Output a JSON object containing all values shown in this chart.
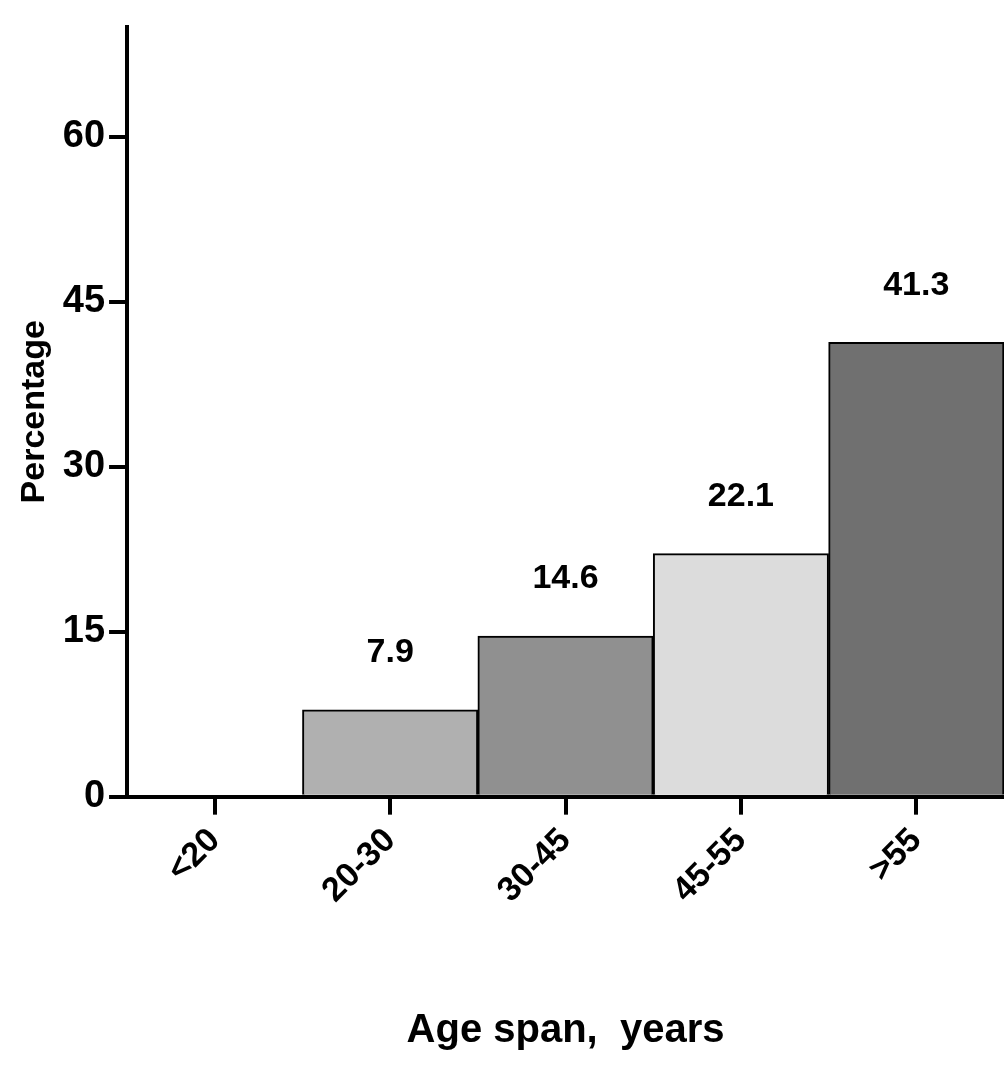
{
  "chart_data": {
    "type": "bar",
    "xlabel": "Age span,  years",
    "ylabel": "Percentage",
    "categories": [
      "<20",
      "20-30",
      "30-45",
      "45-55",
      ">55"
    ],
    "values": [
      null,
      7.9,
      14.6,
      22.1,
      41.3
    ],
    "value_labels": [
      null,
      "7.9",
      "14.6",
      "22.1",
      "41.3"
    ],
    "colors": [
      "#b0b0b0",
      "#b0b0b0",
      "#909090",
      "#dcdcdc",
      "#707070"
    ],
    "ylim": [
      0,
      70
    ],
    "yticks": [
      0,
      15,
      30,
      45,
      60
    ],
    "grid": false,
    "legend": false
  }
}
